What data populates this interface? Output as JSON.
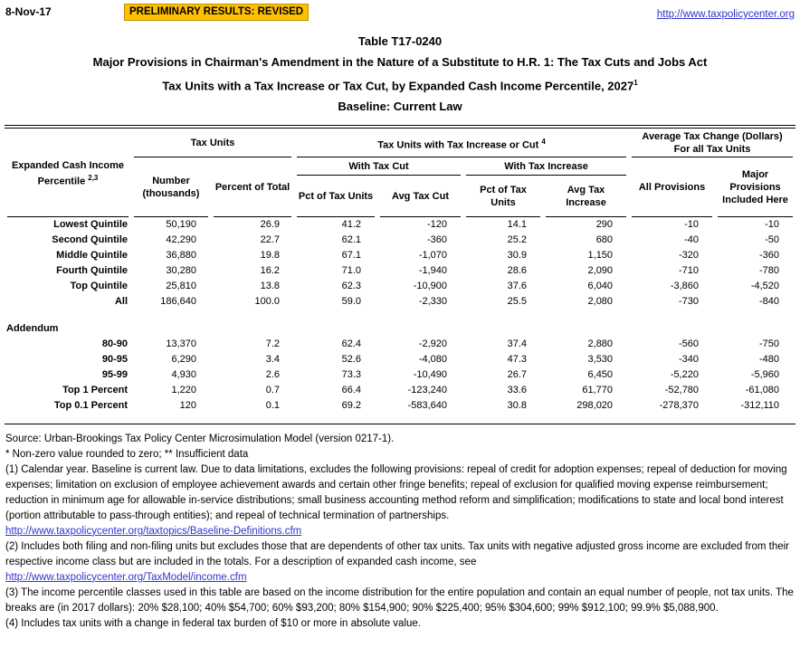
{
  "header": {
    "date": "8-Nov-17",
    "banner": "PRELIMINARY RESULTS: REVISED",
    "link": "http://www.taxpolicycenter.org"
  },
  "title": {
    "line1": "Table T17-0240",
    "line2": "Major Provisions in Chairman's Amendment in the Nature of a Substitute to H.R. 1: The Tax Cuts and Jobs Act",
    "line3": "Tax Units with a Tax Increase or Tax Cut, by Expanded Cash Income Percentile, 2027",
    "line3_superscript": "1",
    "line4": "Baseline: Current Law"
  },
  "table": {
    "stub_header": {
      "text": "Expanded Cash Income Percentile ",
      "superscript": "2,3"
    },
    "groups": {
      "tax_units": "Tax Units",
      "increase_or_cut": "Tax Units with Tax Increase or Cut ",
      "increase_or_cut_superscript": "4",
      "avg_change_line1": "Average Tax Change (Dollars)",
      "avg_change_line2": "For all Tax Units",
      "with_cut": "With Tax Cut",
      "with_increase": "With Tax Increase"
    },
    "columns": [
      "Number (thousands)",
      "Percent of Total",
      "Pct of Tax Units",
      "Avg Tax Cut",
      "Pct of Tax Units",
      "Avg Tax Increase",
      "All Provisions",
      "Major Provisions Included Here"
    ],
    "rows": [
      {
        "label": "Lowest Quintile",
        "values": [
          "50,190",
          "26.9",
          "41.2",
          "-120",
          "14.1",
          "290",
          "-10",
          "-10"
        ]
      },
      {
        "label": "Second Quintile",
        "values": [
          "42,290",
          "22.7",
          "62.1",
          "-360",
          "25.2",
          "680",
          "-40",
          "-50"
        ]
      },
      {
        "label": "Middle Quintile",
        "values": [
          "36,880",
          "19.8",
          "67.1",
          "-1,070",
          "30.9",
          "1,150",
          "-320",
          "-360"
        ]
      },
      {
        "label": "Fourth Quintile",
        "values": [
          "30,280",
          "16.2",
          "71.0",
          "-1,940",
          "28.6",
          "2,090",
          "-710",
          "-780"
        ]
      },
      {
        "label": "Top Quintile",
        "values": [
          "25,810",
          "13.8",
          "62.3",
          "-10,900",
          "37.6",
          "6,040",
          "-3,860",
          "-4,520"
        ]
      },
      {
        "label": "All",
        "values": [
          "186,640",
          "100.0",
          "59.0",
          "-2,330",
          "25.5",
          "2,080",
          "-730",
          "-840"
        ]
      }
    ],
    "addendum_label": "Addendum",
    "addendum_rows": [
      {
        "label": "80-90",
        "values": [
          "13,370",
          "7.2",
          "62.4",
          "-2,920",
          "37.4",
          "2,880",
          "-560",
          "-750"
        ]
      },
      {
        "label": "90-95",
        "values": [
          "6,290",
          "3.4",
          "52.6",
          "-4,080",
          "47.3",
          "3,530",
          "-340",
          "-480"
        ]
      },
      {
        "label": "95-99",
        "values": [
          "4,930",
          "2.6",
          "73.3",
          "-10,490",
          "26.7",
          "6,450",
          "-5,220",
          "-5,960"
        ]
      },
      {
        "label": "Top 1 Percent",
        "values": [
          "1,220",
          "0.7",
          "66.4",
          "-123,240",
          "33.6",
          "61,770",
          "-52,780",
          "-61,080"
        ]
      },
      {
        "label": "Top 0.1 Percent",
        "values": [
          "120",
          "0.1",
          "69.2",
          "-583,640",
          "30.8",
          "298,020",
          "-278,370",
          "-312,110"
        ]
      }
    ]
  },
  "footnotes": [
    {
      "type": "text",
      "text": "Source: Urban-Brookings Tax Policy Center Microsimulation Model (version 0217-1)."
    },
    {
      "type": "text",
      "text": "* Non-zero value rounded to zero; ** Insufficient data"
    },
    {
      "type": "text",
      "text": "(1) Calendar year. Baseline is current law. Due to data limitations, excludes the following provisions: repeal of credit for adoption expenses; repeal of deduction for moving expenses; limitation on exclusion of employee achievement awards and certain other fringe benefits; repeal of exclusion for qualified moving expense reimbursement; reduction in minimum age for allowable in-service distributions; small business accounting method reform and simplification; modifications to state and local bond interest (portion attributable to pass-through entities); and repeal of technical termination of partnerships."
    },
    {
      "type": "link",
      "text": "http://www.taxpolicycenter.org/taxtopics/Baseline-Definitions.cfm"
    },
    {
      "type": "text",
      "text": "(2) Includes both filing and non-filing units but excludes those that are dependents of other tax units. Tax units with negative adjusted gross income are excluded from their respective income class but are included in the totals. For a description of expanded cash income, see"
    },
    {
      "type": "link",
      "text": "http://www.taxpolicycenter.org/TaxModel/income.cfm"
    },
    {
      "type": "text",
      "text": "(3) The income percentile classes used in this table are based on the income distribution for the entire population and contain an equal number of people, not tax units. The breaks are (in 2017 dollars): 20% $28,100; 40% $54,700; 60% $93,200; 80% $154,900; 90% $225,400; 95% $304,600; 99% $912,100; 99.9% $5,088,900."
    },
    {
      "type": "text",
      "text": "(4) Includes tax units with a change in federal tax burden of $10 or more in absolute value."
    }
  ],
  "colors": {
    "banner_bg": "#FFC000",
    "banner_border": "#BF8F00",
    "link_color": "#3333CC"
  }
}
